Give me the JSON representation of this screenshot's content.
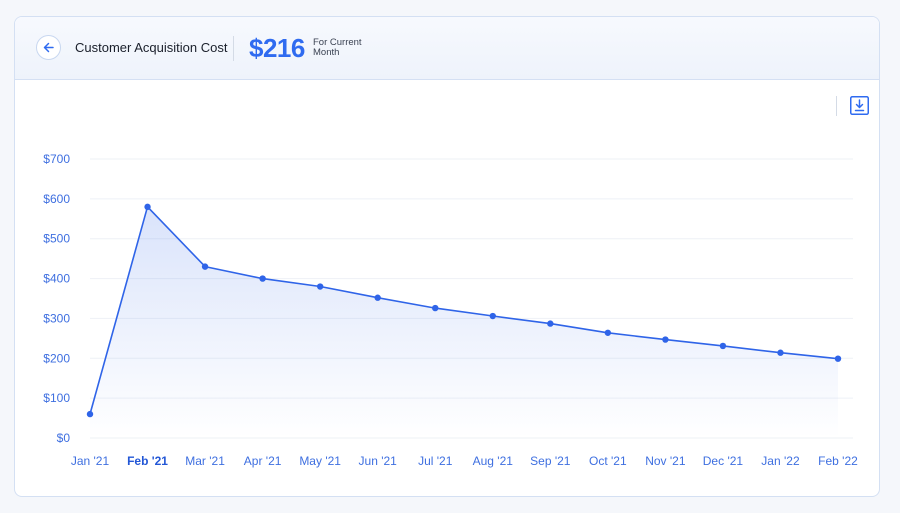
{
  "header": {
    "title": "Customer Acquisition Cost",
    "metric_value": "$216",
    "metric_caption_line1": "For Current",
    "metric_caption_line2": "Month"
  },
  "icons": {
    "back": "arrow-left-icon",
    "download": "download-icon"
  },
  "colors": {
    "accent": "#2f6bf0",
    "line": "#2f64e8",
    "tick_text": "#3e6fe0",
    "grid": "#eef1f6"
  },
  "chart_data": {
    "type": "area",
    "title": "",
    "xlabel": "",
    "ylabel": "",
    "categories": [
      "Jan '21",
      "Feb '21",
      "Mar '21",
      "Apr '21",
      "May '21",
      "Jun '21",
      "Jul '21",
      "Aug '21",
      "Sep '21",
      "Oct '21",
      "Nov '21",
      "Dec '21",
      "Jan '22",
      "Feb '22"
    ],
    "highlighted_category": "Feb '21",
    "values": [
      60,
      580,
      430,
      400,
      380,
      352,
      326,
      306,
      287,
      264,
      247,
      231,
      214,
      199
    ],
    "ylim": [
      0,
      700
    ],
    "yticks": [
      0,
      100,
      200,
      300,
      400,
      500,
      600,
      700
    ],
    "ytick_labels": [
      "$0",
      "$100",
      "$200",
      "$300",
      "$400",
      "$500",
      "$600",
      "$700"
    ],
    "grid": true,
    "legend": "none"
  }
}
